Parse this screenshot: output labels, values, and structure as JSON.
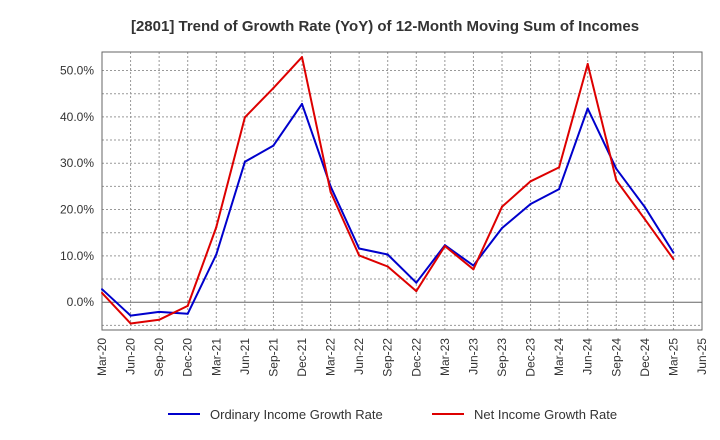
{
  "chart_data": {
    "type": "line",
    "title": "[2801]  Trend of Growth Rate (YoY) of 12-Month Moving Sum of Incomes",
    "xlabel": "",
    "ylabel": "",
    "categories": [
      "Mar-20",
      "Jun-20",
      "Sep-20",
      "Dec-20",
      "Mar-21",
      "Jun-21",
      "Sep-21",
      "Dec-21",
      "Mar-22",
      "Jun-22",
      "Sep-22",
      "Dec-22",
      "Mar-23",
      "Jun-23",
      "Sep-23",
      "Dec-23",
      "Mar-24",
      "Jun-24",
      "Sep-24",
      "Dec-24",
      "Mar-25",
      "Jun-25"
    ],
    "ylim": [
      -6,
      54
    ],
    "yticks": [
      0,
      10,
      20,
      30,
      40,
      50
    ],
    "ytick_labels": [
      "0.0%",
      "10.0%",
      "20.0%",
      "30.0%",
      "40.0%",
      "50.0%"
    ],
    "grid": true,
    "legend_position": "bottom",
    "series": [
      {
        "name": "Ordinary Income Growth Rate",
        "color": "#0000cc",
        "values": [
          2.8,
          -2.9,
          -2.1,
          -2.5,
          10.3,
          30.3,
          33.8,
          42.8,
          25.0,
          11.6,
          10.3,
          4.2,
          12.3,
          7.9,
          16.0,
          21.2,
          24.4,
          41.8,
          28.8,
          20.5,
          10.7,
          null
        ]
      },
      {
        "name": "Net Income Growth Rate",
        "color": "#dd0000",
        "values": [
          2.0,
          -4.6,
          -3.8,
          -0.8,
          16.2,
          39.9,
          46.2,
          52.9,
          23.8,
          10.1,
          7.7,
          2.4,
          12.1,
          7.1,
          20.6,
          26.1,
          29.1,
          51.4,
          26.3,
          17.9,
          9.3,
          null
        ]
      }
    ]
  }
}
